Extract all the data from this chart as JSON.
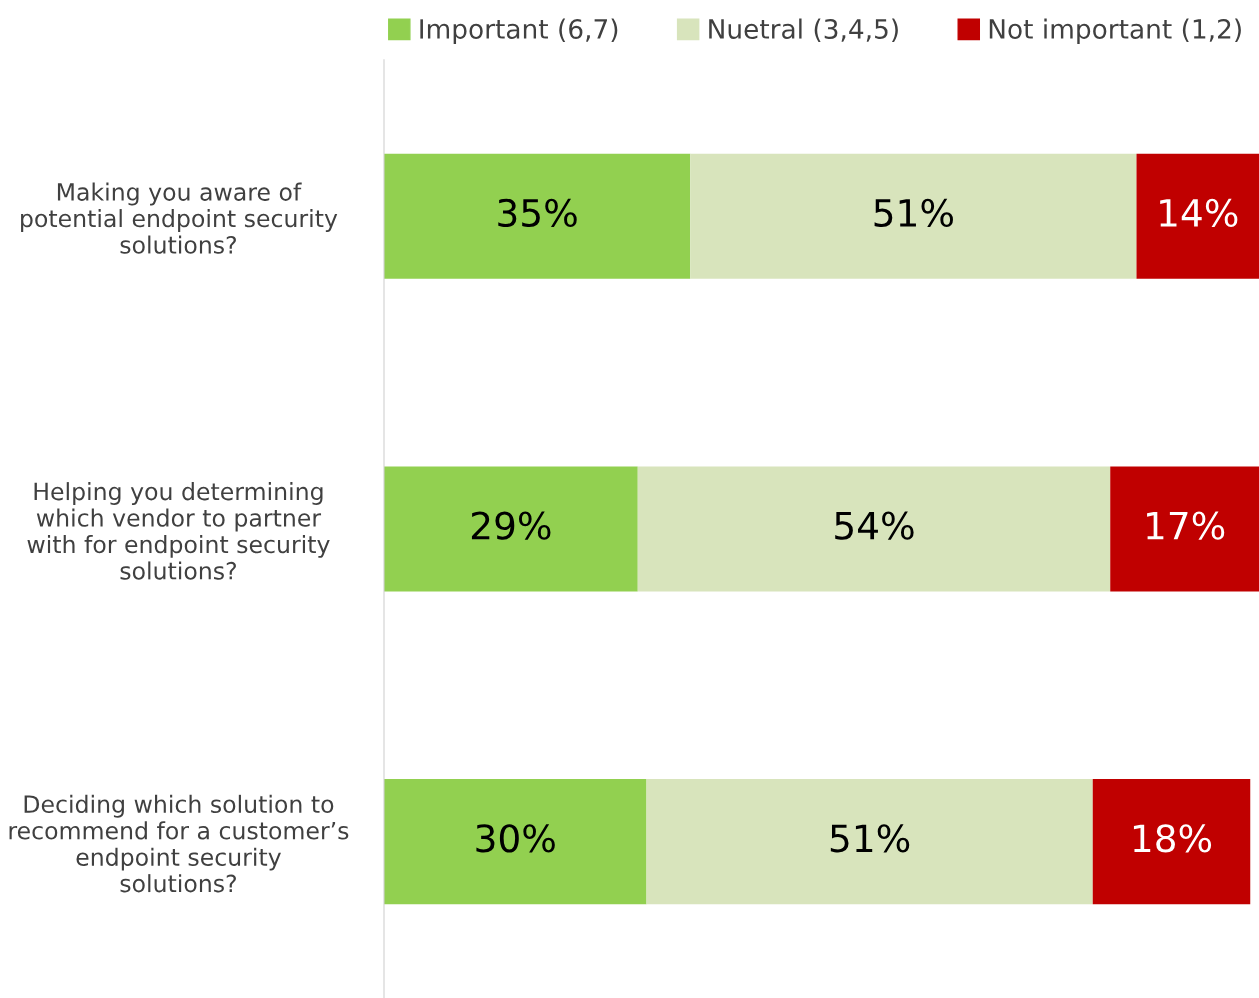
{
  "chart_data": {
    "type": "bar",
    "orientation": "horizontal",
    "stacked": true,
    "data_labels": true,
    "legend": "top right",
    "grid": false,
    "categories": [
      "Making you aware of potential endpoint security solutions?",
      "Helping you determining which vendor to partner with for endpoint security solutions?",
      "Deciding which solution to recommend for a customer’s endpoint security solutions?"
    ],
    "series": [
      {
        "name": "Important (6,7)",
        "color": "#92d050",
        "values": [
          35,
          29,
          30
        ],
        "value_labels": [
          "35%",
          "29%",
          "30%"
        ]
      },
      {
        "name": "Nuetral (3,4,5)",
        "color": "#d8e4bc",
        "values": [
          51,
          54,
          51
        ],
        "value_labels": [
          "51%",
          "54%",
          "51%"
        ]
      },
      {
        "name": "Not important (1,2)",
        "color": "#c00000",
        "values": [
          14,
          17,
          18
        ],
        "value_labels": [
          "14%",
          "17%",
          "18%"
        ]
      }
    ]
  }
}
